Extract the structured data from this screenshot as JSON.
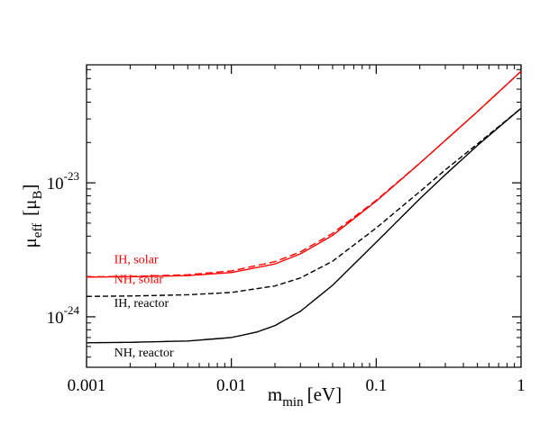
{
  "chart_data": {
    "type": "line",
    "xscale": "log",
    "yscale": "log",
    "xlim": [
      0.001,
      1
    ],
    "ylim": [
      4.2e-25,
      7.6e-23
    ],
    "xlabel": {
      "main": "m",
      "sub": "min",
      "unit": "[eV]"
    },
    "ylabel": {
      "main": "μ",
      "sub": "eff",
      "unit_open": "[μ",
      "unit_sub": "B",
      "unit_close": "]"
    },
    "x_ticks": [
      {
        "value": 0.001,
        "label": "0.001"
      },
      {
        "value": 0.01,
        "label": "0.01"
      },
      {
        "value": 0.1,
        "label": "0.1"
      },
      {
        "value": 1,
        "label": "1"
      }
    ],
    "y_ticks": [
      {
        "value": 1e-24,
        "base": "10",
        "exp": "-24"
      },
      {
        "value": 1e-23,
        "base": "10",
        "exp": "-23"
      }
    ],
    "series": [
      {
        "name": "IH, solar",
        "color": "#ff0000",
        "dash": "8,4",
        "x": [
          0.001,
          0.002,
          0.005,
          0.01,
          0.02,
          0.03,
          0.05,
          0.1,
          0.2,
          0.5,
          1.0
        ],
        "y": [
          1.99e-24,
          2e-24,
          2.06e-24,
          2.2e-24,
          2.58e-24,
          3.05e-24,
          4.2e-24,
          7.4e-24,
          1.4e-23,
          3.4e-23,
          6.8e-23
        ]
      },
      {
        "name": "NH, solar",
        "color": "#ff0000",
        "dash": "",
        "x": [
          0.001,
          0.002,
          0.005,
          0.01,
          0.02,
          0.03,
          0.05,
          0.1,
          0.2,
          0.5,
          1.0
        ],
        "y": [
          1.98e-24,
          1.99e-24,
          2.03e-24,
          2.14e-24,
          2.48e-24,
          2.95e-24,
          4.05e-24,
          7.3e-24,
          1.4e-23,
          3.4e-23,
          6.8e-23
        ]
      },
      {
        "name": "IH, reactor",
        "color": "#000000",
        "dash": "6,3",
        "x": [
          0.001,
          0.002,
          0.005,
          0.01,
          0.02,
          0.03,
          0.05,
          0.1,
          0.2,
          0.3,
          0.5,
          1.0
        ],
        "y": [
          1.42e-24,
          1.43e-24,
          1.46e-24,
          1.52e-24,
          1.7e-24,
          1.95e-24,
          2.6e-24,
          4.6e-24,
          8.6e-24,
          1.25e-23,
          1.95e-23,
          3.6e-23
        ]
      },
      {
        "name": "NH, reactor",
        "color": "#000000",
        "dash": "",
        "x": [
          0.001,
          0.002,
          0.005,
          0.01,
          0.015,
          0.02,
          0.03,
          0.05,
          0.1,
          0.2,
          0.3,
          0.5,
          1.0
        ],
        "y": [
          6.4e-25,
          6.45e-25,
          6.6e-25,
          7e-25,
          7.7e-25,
          8.6e-25,
          1.1e-24,
          1.72e-24,
          3.6e-24,
          7.6e-24,
          1.15e-23,
          1.9e-23,
          3.6e-23
        ]
      }
    ],
    "annotations": [
      {
        "text": "IH, solar",
        "color": "#ff0000",
        "at_x": 0.00155,
        "at_y": 2.5e-24
      },
      {
        "text": "NH, solar",
        "color": "#ff0000",
        "at_x": 0.00155,
        "at_y": 1.78e-24
      },
      {
        "text": "IH, reactor",
        "color": "#000000",
        "at_x": 0.00155,
        "at_y": 1.18e-24
      },
      {
        "text": "NH, reactor",
        "color": "#000000",
        "at_x": 0.00155,
        "at_y": 5.05e-25
      }
    ]
  }
}
